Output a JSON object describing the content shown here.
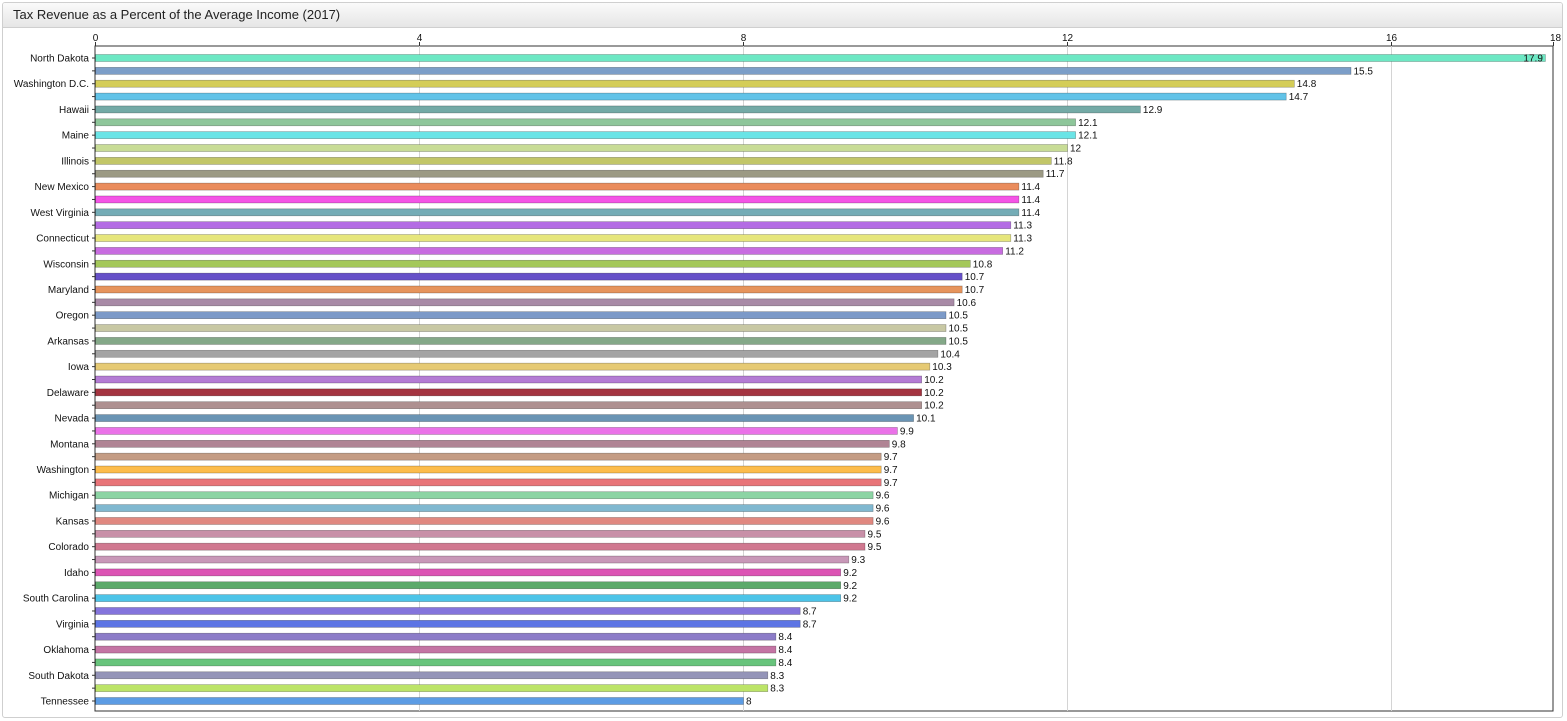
{
  "panel": {
    "title": "Tax Revenue as a Percent of the Average Income (2017)"
  },
  "chart_data": {
    "type": "bar",
    "orientation": "horizontal",
    "title": "Tax Revenue as a Percent of the Average Income (2017)",
    "xlim": [
      0,
      18
    ],
    "xticks": [
      0,
      4,
      8,
      12,
      16,
      18
    ],
    "grid": true,
    "categories": [
      "North Dakota",
      "",
      "Washington D.C.",
      "",
      "Hawaii",
      "",
      "Maine",
      "",
      "Illinois",
      "",
      "New Mexico",
      "",
      "West Virginia",
      "",
      "Connecticut",
      "",
      "Wisconsin",
      "",
      "Maryland",
      "",
      "Oregon",
      "",
      "Arkansas",
      "",
      "Iowa",
      "",
      "Delaware",
      "",
      "Nevada",
      "",
      "Montana",
      "",
      "Washington",
      "",
      "Michigan",
      "",
      "Kansas",
      "",
      "Colorado",
      "",
      "Idaho",
      "",
      "South Carolina",
      "",
      "Virginia",
      "",
      "Oklahoma",
      "",
      "South Dakota",
      "",
      "Tennessee"
    ],
    "values": [
      17.9,
      15.5,
      14.8,
      14.7,
      12.9,
      12.1,
      12.1,
      12,
      11.8,
      11.7,
      11.4,
      11.4,
      11.4,
      11.3,
      11.3,
      11.2,
      10.8,
      10.7,
      10.7,
      10.6,
      10.5,
      10.5,
      10.5,
      10.4,
      10.3,
      10.2,
      10.2,
      10.2,
      10.1,
      9.9,
      9.8,
      9.7,
      9.7,
      9.7,
      9.6,
      9.6,
      9.6,
      9.5,
      9.5,
      9.3,
      9.2,
      9.2,
      9.2,
      8.7,
      8.7,
      8.4,
      8.4,
      8.4,
      8.3,
      8.3,
      8
    ],
    "value_labels": [
      "17.9",
      "15.5",
      "14.8",
      "14.7",
      "12.9",
      "12.1",
      "12.1",
      "12",
      "11.8",
      "11.7",
      "11.4",
      "11.4",
      "11.4",
      "11.3",
      "11.3",
      "11.2",
      "10.8",
      "10.7",
      "10.7",
      "10.6",
      "10.5",
      "10.5",
      "10.5",
      "10.4",
      "10.3",
      "10.2",
      "10.2",
      "10.2",
      "10.1",
      "9.9",
      "9.8",
      "9.7",
      "9.7",
      "9.7",
      "9.6",
      "9.6",
      "9.6",
      "9.5",
      "9.5",
      "9.3",
      "9.2",
      "9.2",
      "9.2",
      "8.7",
      "8.7",
      "8.4",
      "8.4",
      "8.4",
      "8.3",
      "8.3",
      "8"
    ],
    "colors": [
      "#6de8c4",
      "#7c9ec8",
      "#d4cd58",
      "#62c3e8",
      "#74aaa6",
      "#8ec69a",
      "#6ae4e6",
      "#c8dc96",
      "#c2c668",
      "#9c9a84",
      "#ea8c5c",
      "#f454e6",
      "#74acb6",
      "#b46ce4",
      "#e6e67c",
      "#c86ce0",
      "#a4c85a",
      "#6650c8",
      "#e6945c",
      "#a88aa6",
      "#7c9ac8",
      "#c8c8a4",
      "#84a888",
      "#a4a4a4",
      "#e6ca74",
      "#b47cd4",
      "#a43440",
      "#ae9090",
      "#6a94b4",
      "#ea72e8",
      "#b08494",
      "#c49c84",
      "#fcbc4c",
      "#e87478",
      "#8cd4a4",
      "#80b8d0",
      "#e08880",
      "#c890a8",
      "#d07890",
      "#c898b8",
      "#dc54b4",
      "#5caa6a",
      "#4cc4e8",
      "#8474dc",
      "#5c74e4",
      "#8c7cc8",
      "#c474a4",
      "#68c47c",
      "#9494b8",
      "#bce468",
      "#5c9ce4"
    ]
  }
}
